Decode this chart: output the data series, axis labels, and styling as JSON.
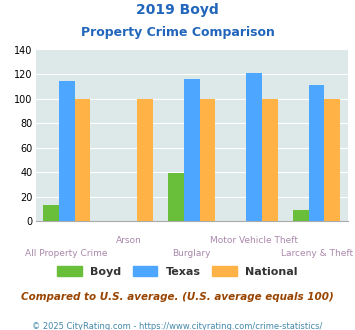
{
  "title_line1": "2019 Boyd",
  "title_line2": "Property Crime Comparison",
  "categories": [
    "All Property Crime",
    "Arson",
    "Burglary",
    "Motor Vehicle Theft",
    "Larceny & Theft"
  ],
  "label_row": [
    1,
    0,
    1,
    0,
    1
  ],
  "boyd_values": [
    13,
    0,
    39,
    0,
    9
  ],
  "texas_values": [
    114,
    0,
    116,
    121,
    111
  ],
  "national_values": [
    100,
    100,
    100,
    100,
    100
  ],
  "boyd_color": "#6abf3a",
  "texas_color": "#4da6ff",
  "national_color": "#ffb347",
  "ylim": [
    0,
    140
  ],
  "yticks": [
    0,
    20,
    40,
    60,
    80,
    100,
    120,
    140
  ],
  "background_color": "#dde8e8",
  "note": "Compared to U.S. average. (U.S. average equals 100)",
  "footer": "© 2025 CityRating.com - https://www.cityrating.com/crime-statistics/",
  "title_color": "#2266bb",
  "note_color": "#994400",
  "footer_color": "#4488aa",
  "label_color": "#aa88aa",
  "legend_label_color": "#333333"
}
